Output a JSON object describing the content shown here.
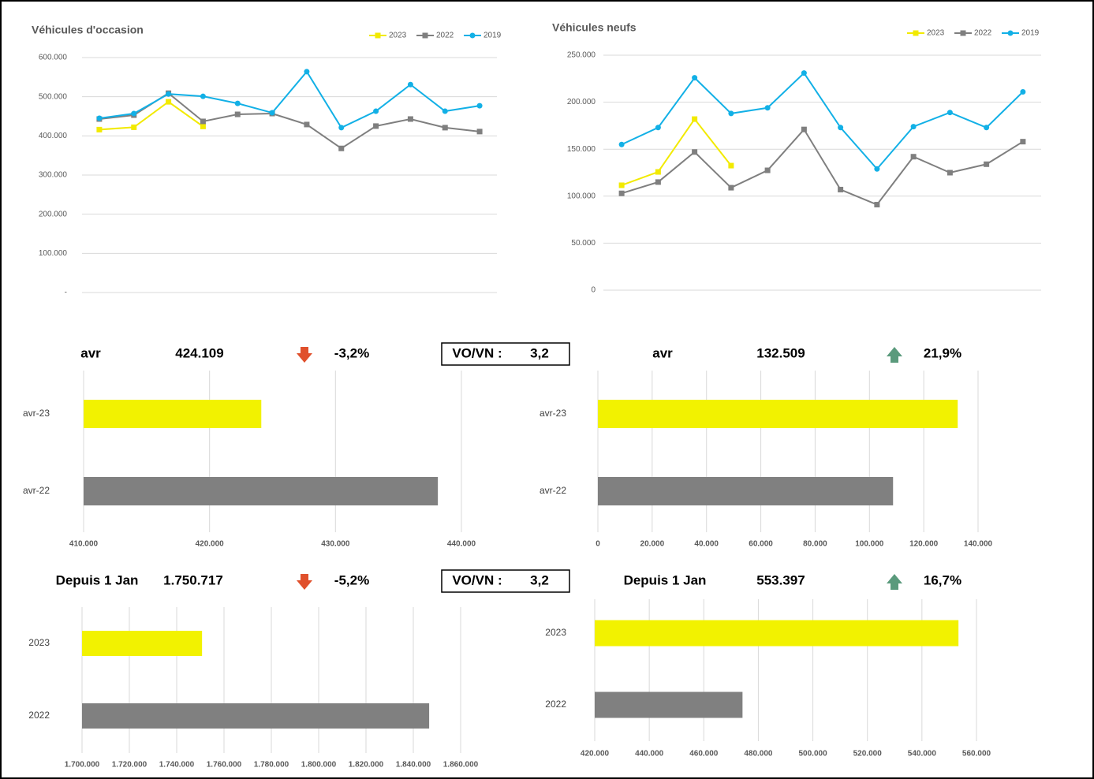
{
  "chart_data": [
    {
      "type": "line",
      "title": "Véhicules d'occasion",
      "categories": [
        null,
        null,
        null,
        null,
        null,
        null,
        null,
        null,
        null,
        null,
        null,
        null
      ],
      "series": [
        {
          "name": "2023",
          "color": "#f2ea00",
          "marker": "square",
          "values": [
            416000,
            422000,
            487000,
            424109,
            null,
            null,
            null,
            null,
            null,
            null,
            null,
            null
          ]
        },
        {
          "name": "2022",
          "color": "#7f7f7f",
          "marker": "square",
          "values": [
            443000,
            453000,
            509000,
            437000,
            455000,
            457000,
            429000,
            368000,
            425000,
            443000,
            421000,
            411000
          ]
        },
        {
          "name": "2019",
          "color": "#12b0e6",
          "marker": "circle",
          "values": [
            445000,
            457000,
            507000,
            501000,
            483000,
            459000,
            564000,
            421000,
            463000,
            531000,
            463000,
            477000
          ]
        }
      ],
      "ylim": [
        0,
        600000
      ],
      "yticks": [
        {
          "value": 0,
          "label": "-"
        },
        {
          "value": 100000,
          "label": "100.000"
        },
        {
          "value": 200000,
          "label": "200.000"
        },
        {
          "value": 300000,
          "label": "300.000"
        },
        {
          "value": 400000,
          "label": "400.000"
        },
        {
          "value": 500000,
          "label": "500.000"
        },
        {
          "value": 600000,
          "label": "600.000"
        }
      ],
      "grid": true,
      "legend": "top-right"
    },
    {
      "type": "line",
      "title": "Véhicules neufs",
      "categories": [
        null,
        null,
        null,
        null,
        null,
        null,
        null,
        null,
        null,
        null,
        null,
        null
      ],
      "series": [
        {
          "name": "2023",
          "color": "#f2ea00",
          "marker": "square",
          "values": [
            111600,
            125800,
            182000,
            132509,
            null,
            null,
            null,
            null,
            null,
            null,
            null,
            null
          ]
        },
        {
          "name": "2022",
          "color": "#7f7f7f",
          "marker": "square",
          "values": [
            103000,
            115000,
            147000,
            109000,
            127500,
            171000,
            107000,
            91000,
            142000,
            125000,
            134000,
            158000
          ]
        },
        {
          "name": "2019",
          "color": "#12b0e6",
          "marker": "circle",
          "values": [
            155000,
            173000,
            226000,
            188000,
            194000,
            231000,
            173000,
            129000,
            174000,
            189000,
            173000,
            211000
          ]
        }
      ],
      "ylim": [
        0,
        250000
      ],
      "yticks": [
        0,
        {
          "value": 50000,
          "label": "50.000"
        },
        {
          "value": 100000,
          "label": "100.000"
        },
        {
          "value": 150000,
          "label": "150.000"
        },
        {
          "value": 200000,
          "label": "200.000"
        },
        {
          "value": 250000,
          "label": "250.000"
        }
      ],
      "grid": true,
      "legend": "top-right"
    },
    {
      "type": "barh",
      "categories": [
        "avr-23",
        "avr-22"
      ],
      "values": [
        424109,
        438130
      ],
      "colors": [
        "#f2f200",
        "#808080"
      ],
      "xlim": [
        410000,
        440000
      ],
      "xticks": [
        {
          "value": 410000,
          "label": "410.000"
        },
        {
          "value": 420000,
          "label": "420.000"
        },
        {
          "value": 430000,
          "label": "430.000"
        },
        {
          "value": 440000,
          "label": "440.000"
        }
      ],
      "grid": true
    },
    {
      "type": "barh",
      "categories": [
        "avr-23",
        "avr-22"
      ],
      "values": [
        132509,
        108700
      ],
      "colors": [
        "#f2f200",
        "#808080"
      ],
      "xlim": [
        0,
        140000
      ],
      "xticks": [
        0,
        {
          "value": 20000,
          "label": "20.000"
        },
        {
          "value": 40000,
          "label": "40.000"
        },
        {
          "value": 60000,
          "label": "60.000"
        },
        {
          "value": 80000,
          "label": "80.000"
        },
        {
          "value": 100000,
          "label": "100.000"
        },
        {
          "value": 120000,
          "label": "120.000"
        },
        {
          "value": 140000,
          "label": "140.000"
        }
      ],
      "grid": true
    },
    {
      "type": "barh",
      "categories": [
        "2023",
        "2022"
      ],
      "values": [
        1750717,
        1846700
      ],
      "colors": [
        "#f2f200",
        "#808080"
      ],
      "xlim": [
        1700000,
        1860000
      ],
      "xticks": [
        {
          "value": 1700000,
          "label": "1.700.000"
        },
        {
          "value": 1720000,
          "label": "1.720.000"
        },
        {
          "value": 1740000,
          "label": "1.740.000"
        },
        {
          "value": 1760000,
          "label": "1.760.000"
        },
        {
          "value": 1780000,
          "label": "1.780.000"
        },
        {
          "value": 1800000,
          "label": "1.800.000"
        },
        {
          "value": 1820000,
          "label": "1.820.000"
        },
        {
          "value": 1840000,
          "label": "1.840.000"
        },
        {
          "value": 1860000,
          "label": "1.860.000"
        }
      ],
      "grid": true
    },
    {
      "type": "barh",
      "categories": [
        "2023",
        "2022"
      ],
      "values": [
        553397,
        474200
      ],
      "colors": [
        "#f2f200",
        "#808080"
      ],
      "xlim": [
        420000,
        560000
      ],
      "xticks": [
        {
          "value": 420000,
          "label": "420.000"
        },
        {
          "value": 440000,
          "label": "440.000"
        },
        {
          "value": 460000,
          "label": "460.000"
        },
        {
          "value": 480000,
          "label": "480.000"
        },
        {
          "value": 500000,
          "label": "500.000"
        },
        {
          "value": 520000,
          "label": "520.000"
        },
        {
          "value": 540000,
          "label": "540.000"
        },
        {
          "value": 560000,
          "label": "560.000"
        }
      ],
      "grid": true
    }
  ],
  "kpis": [
    {
      "period": "avr",
      "vo_value": "424.109",
      "vo_change": "-3,2%",
      "ratio_label": "VO/VN :",
      "ratio": "3,2",
      "vn_period": "avr",
      "vn_value": "132.509",
      "vn_change": "21,9%"
    },
    {
      "period": "Depuis 1 Jan",
      "vo_value": "1.750.717",
      "vo_change": "-5,2%",
      "ratio_label": "VO/VN :",
      "ratio": "3,2",
      "vn_period": "Depuis 1 Jan",
      "vn_value": "553.397",
      "vn_change": "16,7%"
    }
  ]
}
